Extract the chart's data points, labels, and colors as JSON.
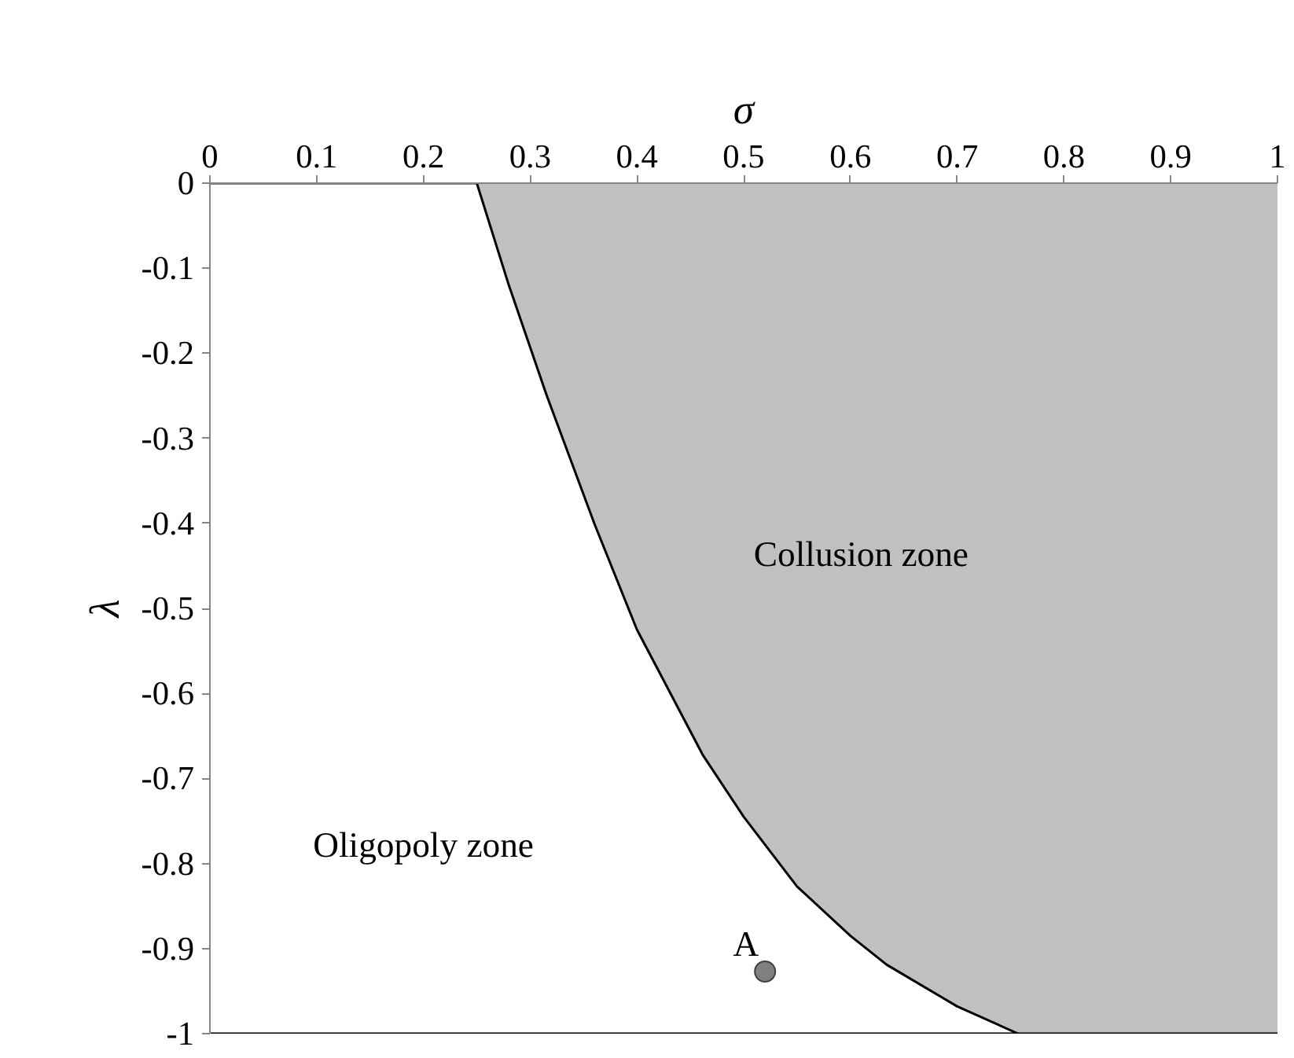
{
  "chart_data": {
    "type": "line",
    "xlabel": "σ",
    "ylabel": "λ",
    "xlim": [
      0,
      1
    ],
    "ylim": [
      -1,
      0
    ],
    "xticks": [
      0,
      0.1,
      0.2,
      0.3,
      0.4,
      0.5,
      0.6,
      0.7,
      0.8,
      0.9,
      1
    ],
    "yticks": [
      0,
      -0.1,
      -0.2,
      -0.3,
      -0.4,
      -0.5,
      -0.6,
      -0.7,
      -0.8,
      -0.9,
      -1
    ],
    "grid": false,
    "series": [
      {
        "type": "area",
        "color": "#c0c0c0",
        "x": [
          0.25,
          0.28,
          0.315,
          0.36,
          0.4,
          0.462,
          0.5,
          0.55,
          0.6,
          0.634,
          0.7,
          0.757,
          1
        ],
        "values": [
          0,
          -0.12,
          -0.248,
          -0.4,
          -0.525,
          -0.673,
          -0.745,
          -0.827,
          -0.885,
          -0.919,
          -0.968,
          -1,
          -1
        ]
      },
      {
        "color": "#000000",
        "x": [
          0,
          0.25,
          0.28,
          0.315,
          0.36,
          0.4,
          0.462,
          0.5,
          0.55,
          0.6,
          0.634,
          0.7,
          0.757
        ],
        "values": [
          0,
          0,
          -0.12,
          -0.248,
          -0.4,
          -0.525,
          -0.673,
          -0.745,
          -0.827,
          -0.885,
          -0.919,
          -0.968,
          -1
        ]
      },
      {
        "color": "#000000",
        "x": [
          0,
          1
        ],
        "values": [
          -1,
          -1
        ]
      },
      {
        "type": "scatter",
        "name": "A",
        "color": "#808080",
        "marker": "circle",
        "x": [
          0.52
        ],
        "values": [
          -0.927
        ]
      }
    ],
    "annotations": [
      "Collusion zone",
      "Oligopoly zone"
    ]
  }
}
